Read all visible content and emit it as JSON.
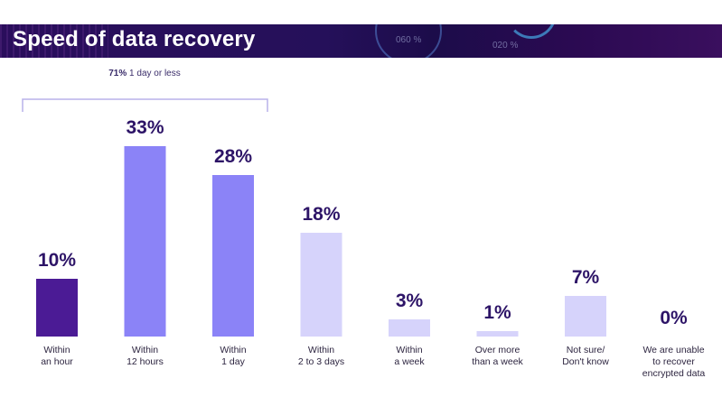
{
  "header": {
    "title": "Speed of data recovery"
  },
  "decor": {
    "text1": "060 %",
    "text2": "020 %"
  },
  "chart_data": {
    "type": "bar",
    "title": "Speed of data recovery",
    "categories": [
      [
        "Within",
        "an hour"
      ],
      [
        "Within",
        "12 hours"
      ],
      [
        "Within",
        "1 day"
      ],
      [
        "Within",
        "2 to 3 days"
      ],
      [
        "Within",
        "a week"
      ],
      [
        "Over more",
        "than a week"
      ],
      [
        "Not sure/",
        "Don't know"
      ],
      [
        "We are unable",
        "to recover",
        "encrypted data"
      ]
    ],
    "values": [
      10,
      33,
      28,
      18,
      3,
      1,
      7,
      0
    ],
    "value_labels": [
      "10%",
      "33%",
      "28%",
      "18%",
      "3%",
      "1%",
      "7%",
      "0%"
    ],
    "colors": [
      "#4b1b95",
      "#8b83f7",
      "#8b83f7",
      "#d6d3fb",
      "#d6d3fb",
      "#d6d3fb",
      "#d6d3fb",
      "#d6d3fb"
    ],
    "ylim": [
      0,
      33
    ],
    "annotation": {
      "bold": "71%",
      "text": " 1 day or less"
    }
  }
}
